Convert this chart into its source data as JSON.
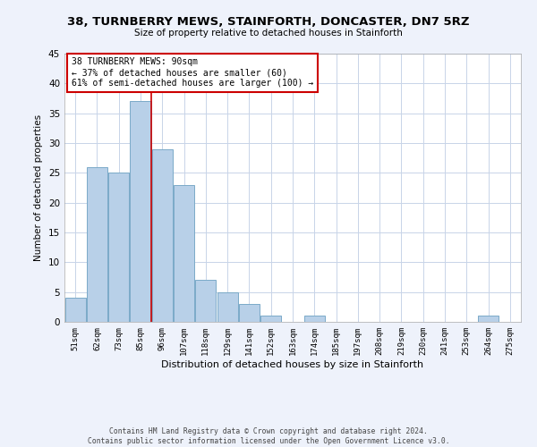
{
  "title1": "38, TURNBERRY MEWS, STAINFORTH, DONCASTER, DN7 5RZ",
  "title2": "Size of property relative to detached houses in Stainforth",
  "xlabel": "Distribution of detached houses by size in Stainforth",
  "ylabel": "Number of detached properties",
  "categories": [
    "51sqm",
    "62sqm",
    "73sqm",
    "85sqm",
    "96sqm",
    "107sqm",
    "118sqm",
    "129sqm",
    "141sqm",
    "152sqm",
    "163sqm",
    "174sqm",
    "185sqm",
    "197sqm",
    "208sqm",
    "219sqm",
    "230sqm",
    "241sqm",
    "253sqm",
    "264sqm",
    "275sqm"
  ],
  "values": [
    4,
    26,
    25,
    37,
    29,
    23,
    7,
    5,
    3,
    1,
    0,
    1,
    0,
    0,
    0,
    0,
    0,
    0,
    0,
    1,
    0
  ],
  "bar_color": "#b8d0e8",
  "bar_edge_color": "#7aaac8",
  "property_line_color": "#cc0000",
  "ylim": [
    0,
    45
  ],
  "yticks": [
    0,
    5,
    10,
    15,
    20,
    25,
    30,
    35,
    40,
    45
  ],
  "annotation_title": "38 TURNBERRY MEWS: 90sqm",
  "annotation_line1": "← 37% of detached houses are smaller (60)",
  "annotation_line2": "61% of semi-detached houses are larger (100) →",
  "annotation_box_color": "#ffffff",
  "annotation_box_edge": "#cc0000",
  "footnote1": "Contains HM Land Registry data © Crown copyright and database right 2024.",
  "footnote2": "Contains public sector information licensed under the Open Government Licence v3.0.",
  "background_color": "#eef2fb",
  "plot_bg_color": "#ffffff",
  "grid_color": "#c8d4e8"
}
